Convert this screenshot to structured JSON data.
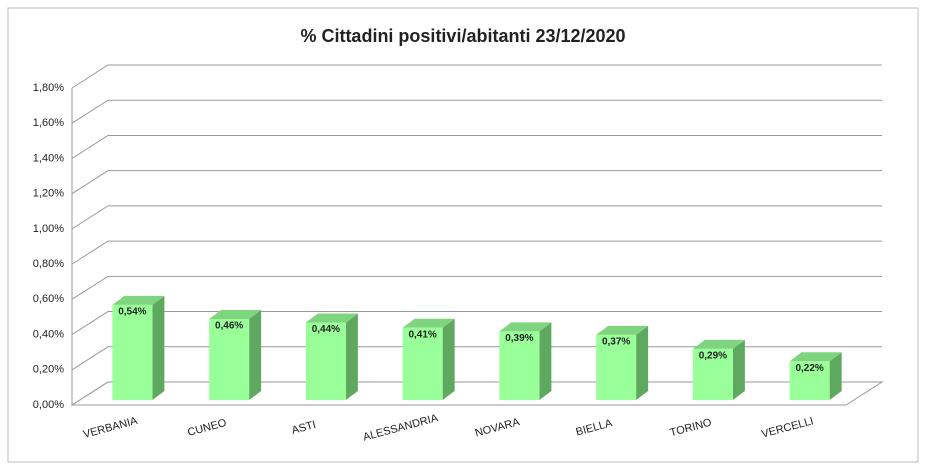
{
  "chart_data": {
    "type": "bar3d",
    "title": "% Cittadini positivi/abitanti 23/12/2020",
    "categories": [
      "VERBANIA",
      "CUNEO",
      "ASTI",
      "ALESSANDRIA",
      "NOVARA",
      "BIELLA",
      "TORINO",
      "VERCELLI"
    ],
    "values": [
      0.54,
      0.46,
      0.44,
      0.41,
      0.39,
      0.37,
      0.29,
      0.22
    ],
    "value_labels": [
      "0,54%",
      "0,46%",
      "0,44%",
      "0,41%",
      "0,39%",
      "0,37%",
      "0,29%",
      "0,22%"
    ],
    "color": "#99ff99",
    "ylim": [
      0,
      1.8
    ],
    "yticks": [
      {
        "value": 0,
        "label": "0,00%"
      },
      {
        "value": 0.2,
        "label": "0,20%"
      },
      {
        "value": 0.4,
        "label": "0,40%"
      },
      {
        "value": 0.6,
        "label": "0,60%"
      },
      {
        "value": 0.8,
        "label": "0,80%"
      },
      {
        "value": 1.0,
        "label": "1,00%"
      },
      {
        "value": 1.2,
        "label": "1,20%"
      },
      {
        "value": 1.4,
        "label": "1,40%"
      },
      {
        "value": 1.6,
        "label": "1,60%"
      },
      {
        "value": 1.8,
        "label": "1,80%"
      }
    ],
    "grid": true
  }
}
